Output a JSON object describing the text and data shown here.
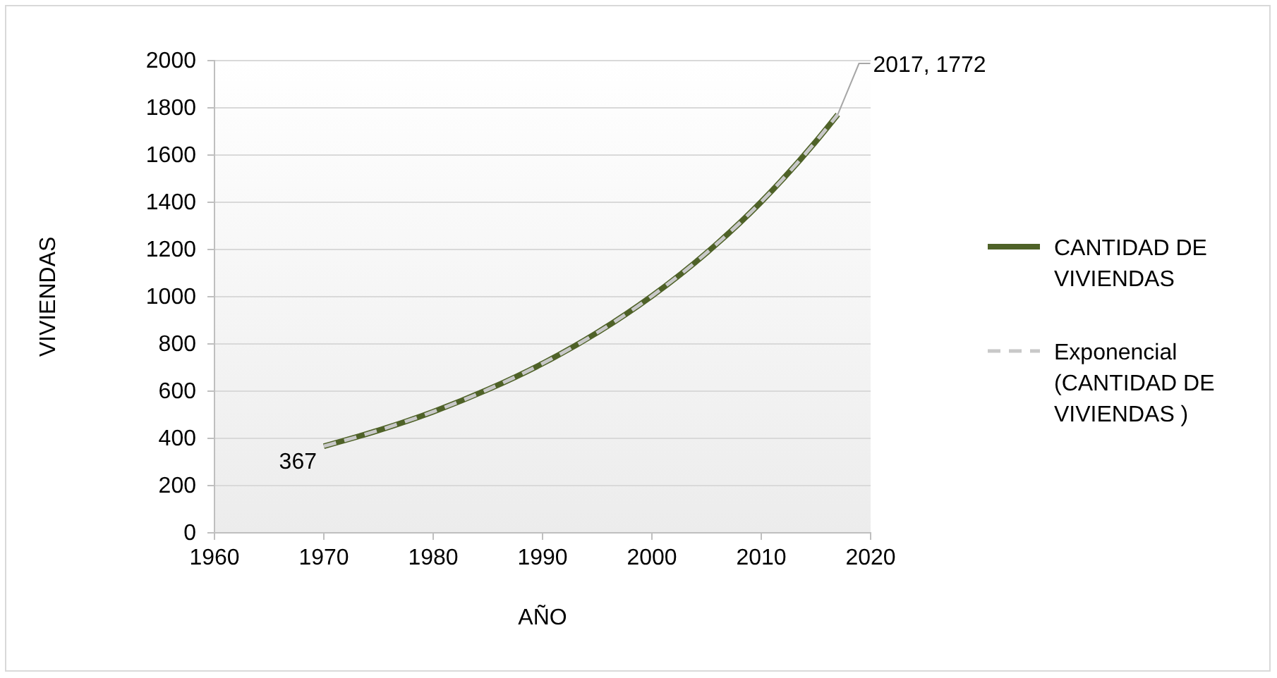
{
  "chart_data": {
    "type": "line",
    "xlabel": "AÑO",
    "ylabel": "VIVIENDAS",
    "xlim": [
      1960,
      2020
    ],
    "xticks": [
      1960,
      1970,
      1980,
      1990,
      2000,
      2010,
      2020
    ],
    "ylim": [
      0,
      2000
    ],
    "yticks": [
      0,
      200,
      400,
      600,
      800,
      1000,
      1200,
      1400,
      1600,
      1800,
      2000
    ],
    "grid": "y",
    "legend": "right",
    "x": [
      1970,
      1975,
      1980,
      1985,
      1990,
      1995,
      2000,
      2005,
      2010,
      2015,
      2017
    ],
    "series": [
      {
        "name": "CANTIDAD DE VIVIENDAS",
        "color": "#4f6228",
        "line_style": "solid",
        "values": [
          367,
          434,
          513,
          607,
          717,
          848,
          1003,
          1186,
          1402,
          1658,
          1772
        ]
      },
      {
        "name": "Exponencial (CANTIDAD DE VIVIENDAS )",
        "type": "line",
        "color": "#c8c8c8",
        "line_style": "dashed",
        "x": [
          1970,
          1975,
          1980,
          1985,
          1990,
          1995,
          2000,
          2005,
          2010,
          2015,
          2017
        ],
        "values": [
          367,
          434,
          513,
          607,
          717,
          848,
          1003,
          1186,
          1402,
          1658,
          1772
        ]
      }
    ],
    "annotations": [
      {
        "text": "367",
        "x": 1970,
        "y": 367
      },
      {
        "text": "2017, 1772",
        "x": 2017,
        "y": 1772
      }
    ]
  }
}
